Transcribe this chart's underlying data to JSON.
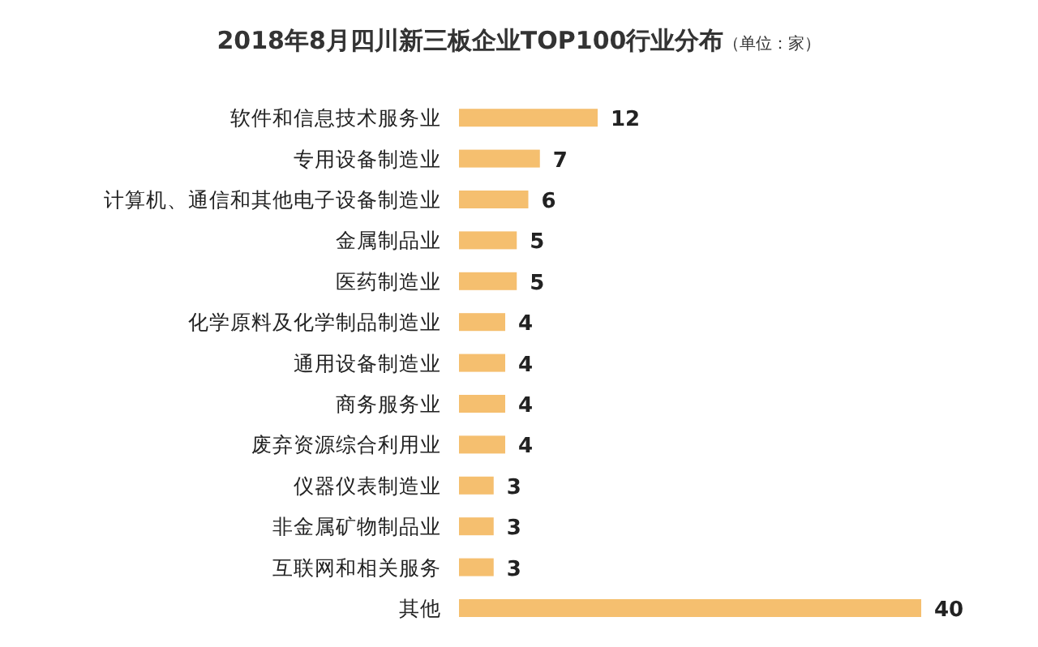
{
  "chart_data": {
    "type": "bar",
    "orientation": "horizontal",
    "title": "2018年8月四川新三板企业TOP100行业分布",
    "subtitle": "（单位：家）",
    "categories": [
      "软件和信息技术服务业",
      "专用设备制造业",
      "计算机、通信和其他电子设备制造业",
      "金属制品业",
      "医药制造业",
      "化学原料及化学制品制造业",
      "通用设备制造业",
      "商务服务业",
      "废弃资源综合利用业",
      "仪器仪表制造业",
      "非金属矿物制品业",
      "互联网和相关服务",
      "其他"
    ],
    "values": [
      12,
      7,
      6,
      5,
      5,
      4,
      4,
      4,
      4,
      3,
      3,
      3,
      40
    ],
    "color": "#f5bf6f",
    "data_labels": true
  }
}
